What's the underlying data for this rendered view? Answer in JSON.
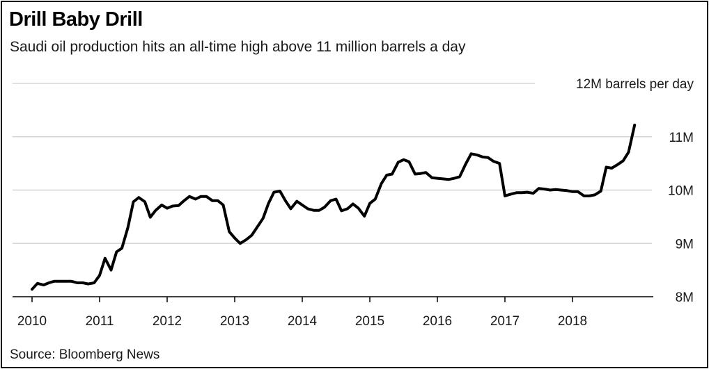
{
  "chart_data": {
    "type": "line",
    "title": "Drill Baby Drill",
    "subtitle": "Saudi oil production hits an all-time high above 11 million barrels a day",
    "source": "Source: Bloomberg News",
    "unit_label": "12M barrels per day",
    "ylim": [
      8,
      12
    ],
    "xlim": [
      2010,
      2019.25
    ],
    "y_ticks": [
      {
        "value": 12,
        "label": ""
      },
      {
        "value": 11,
        "label": "11M"
      },
      {
        "value": 10,
        "label": "10M"
      },
      {
        "value": 9,
        "label": "9M"
      },
      {
        "value": 8,
        "label": "8M"
      }
    ],
    "x_ticks": [
      {
        "value": 2010,
        "label": "2010"
      },
      {
        "value": 2011,
        "label": "2011"
      },
      {
        "value": 2012,
        "label": "2012"
      },
      {
        "value": 2013,
        "label": "2013"
      },
      {
        "value": 2014,
        "label": "2014"
      },
      {
        "value": 2015,
        "label": "2015"
      },
      {
        "value": 2016,
        "label": "2016"
      },
      {
        "value": 2017,
        "label": "2017"
      },
      {
        "value": 2018,
        "label": "2018"
      }
    ],
    "grid": true,
    "series": [
      {
        "color": "#000000",
        "points": [
          [
            2010.0,
            8.14
          ],
          [
            2010.08,
            8.25
          ],
          [
            2010.17,
            8.22
          ],
          [
            2010.25,
            8.26
          ],
          [
            2010.33,
            8.29
          ],
          [
            2010.42,
            8.29
          ],
          [
            2010.5,
            8.29
          ],
          [
            2010.58,
            8.29
          ],
          [
            2010.67,
            8.26
          ],
          [
            2010.75,
            8.26
          ],
          [
            2010.83,
            8.24
          ],
          [
            2010.92,
            8.26
          ],
          [
            2011.0,
            8.4
          ],
          [
            2011.08,
            8.72
          ],
          [
            2011.17,
            8.5
          ],
          [
            2011.25,
            8.84
          ],
          [
            2011.33,
            8.91
          ],
          [
            2011.42,
            9.3
          ],
          [
            2011.5,
            9.78
          ],
          [
            2011.58,
            9.86
          ],
          [
            2011.67,
            9.78
          ],
          [
            2011.75,
            9.49
          ],
          [
            2011.83,
            9.62
          ],
          [
            2011.92,
            9.72
          ],
          [
            2012.0,
            9.66
          ],
          [
            2012.08,
            9.7
          ],
          [
            2012.17,
            9.71
          ],
          [
            2012.25,
            9.8
          ],
          [
            2012.33,
            9.88
          ],
          [
            2012.42,
            9.83
          ],
          [
            2012.5,
            9.88
          ],
          [
            2012.58,
            9.88
          ],
          [
            2012.67,
            9.8
          ],
          [
            2012.75,
            9.8
          ],
          [
            2012.83,
            9.72
          ],
          [
            2012.92,
            9.22
          ],
          [
            2013.0,
            9.1
          ],
          [
            2013.08,
            9.0
          ],
          [
            2013.17,
            9.07
          ],
          [
            2013.25,
            9.15
          ],
          [
            2013.33,
            9.3
          ],
          [
            2013.42,
            9.47
          ],
          [
            2013.5,
            9.75
          ],
          [
            2013.58,
            9.96
          ],
          [
            2013.67,
            9.98
          ],
          [
            2013.75,
            9.8
          ],
          [
            2013.83,
            9.65
          ],
          [
            2013.92,
            9.79
          ],
          [
            2014.0,
            9.72
          ],
          [
            2014.08,
            9.65
          ],
          [
            2014.17,
            9.62
          ],
          [
            2014.25,
            9.62
          ],
          [
            2014.33,
            9.68
          ],
          [
            2014.42,
            9.8
          ],
          [
            2014.5,
            9.83
          ],
          [
            2014.58,
            9.61
          ],
          [
            2014.67,
            9.65
          ],
          [
            2014.75,
            9.74
          ],
          [
            2014.83,
            9.66
          ],
          [
            2014.92,
            9.51
          ],
          [
            2015.0,
            9.75
          ],
          [
            2015.08,
            9.83
          ],
          [
            2015.17,
            10.12
          ],
          [
            2015.25,
            10.28
          ],
          [
            2015.33,
            10.3
          ],
          [
            2015.42,
            10.52
          ],
          [
            2015.5,
            10.57
          ],
          [
            2015.58,
            10.53
          ],
          [
            2015.67,
            10.3
          ],
          [
            2015.75,
            10.31
          ],
          [
            2015.83,
            10.33
          ],
          [
            2015.92,
            10.23
          ],
          [
            2016.0,
            10.22
          ],
          [
            2016.08,
            10.21
          ],
          [
            2016.17,
            10.2
          ],
          [
            2016.25,
            10.22
          ],
          [
            2016.33,
            10.25
          ],
          [
            2016.42,
            10.49
          ],
          [
            2016.5,
            10.68
          ],
          [
            2016.58,
            10.66
          ],
          [
            2016.67,
            10.62
          ],
          [
            2016.75,
            10.61
          ],
          [
            2016.83,
            10.54
          ],
          [
            2016.92,
            10.5
          ],
          [
            2017.0,
            9.89
          ],
          [
            2017.08,
            9.92
          ],
          [
            2017.17,
            9.95
          ],
          [
            2017.25,
            9.95
          ],
          [
            2017.33,
            9.96
          ],
          [
            2017.42,
            9.94
          ],
          [
            2017.5,
            10.03
          ],
          [
            2017.58,
            10.02
          ],
          [
            2017.67,
            10.0
          ],
          [
            2017.75,
            10.01
          ],
          [
            2017.83,
            10.0
          ],
          [
            2017.92,
            9.99
          ],
          [
            2018.0,
            9.97
          ],
          [
            2018.08,
            9.97
          ],
          [
            2018.17,
            9.89
          ],
          [
            2018.25,
            9.89
          ],
          [
            2018.33,
            9.91
          ],
          [
            2018.42,
            9.98
          ],
          [
            2018.5,
            10.43
          ],
          [
            2018.58,
            10.41
          ],
          [
            2018.67,
            10.48
          ],
          [
            2018.75,
            10.55
          ],
          [
            2018.83,
            10.71
          ],
          [
            2018.92,
            11.22
          ]
        ]
      }
    ]
  }
}
